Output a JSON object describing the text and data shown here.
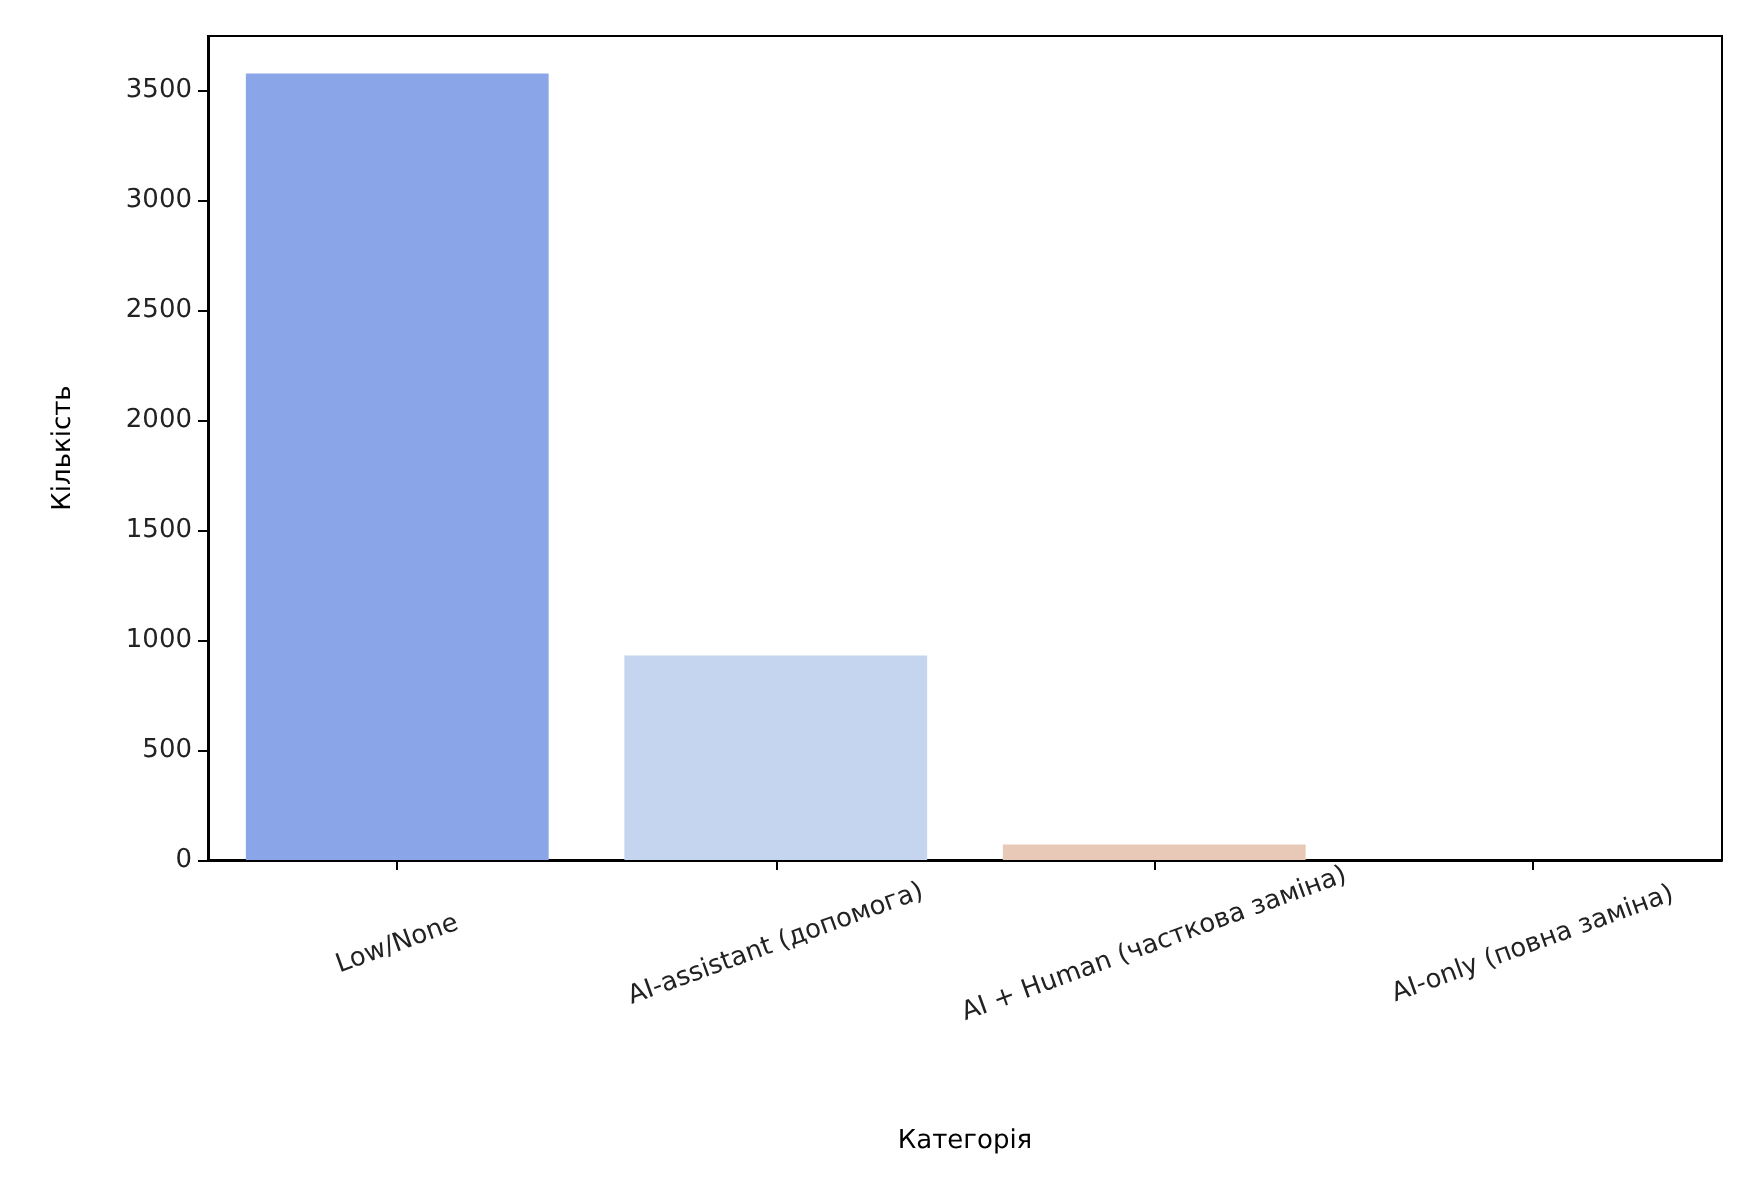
{
  "chart_data": {
    "type": "bar",
    "xlabel": "Категорія",
    "ylabel": "Кількість",
    "categories": [
      "Low/None",
      "AI-assistant (допомога)",
      "AI + Human (часткова заміна)",
      "AI-only (повна заміна)"
    ],
    "values": [
      3575,
      930,
      70,
      0
    ],
    "colors": [
      "#8aa6e8",
      "#c5d4ef",
      "#e8c8b7",
      "#e7917a"
    ],
    "ylim": [
      0,
      3745
    ],
    "yticks": [
      0,
      500,
      1000,
      1500,
      2000,
      2500,
      3000,
      3500
    ],
    "grid": false
  }
}
